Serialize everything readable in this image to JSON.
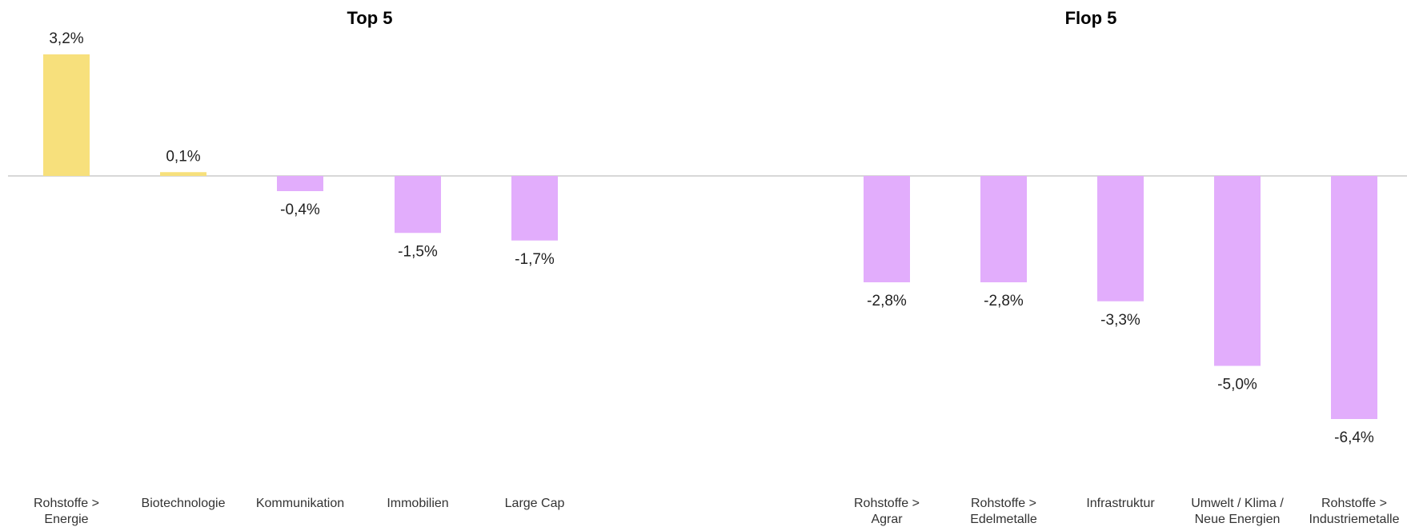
{
  "chart_data": {
    "type": "bar",
    "panels": [
      {
        "title": "Top 5",
        "categories": [
          [
            "Rohstoffe >",
            "Energie"
          ],
          [
            "Biotechnologie"
          ],
          [
            "Kommunikation"
          ],
          [
            "Immobilien"
          ],
          [
            "Large Cap"
          ]
        ],
        "values": [
          3.2,
          0.1,
          -0.4,
          -1.5,
          -1.7
        ],
        "value_labels": [
          "3,2%",
          "0,1%",
          "-0,4%",
          "-1,5%",
          "-1,7%"
        ]
      },
      {
        "title": "Flop 5",
        "categories": [
          [
            "Rohstoffe >",
            "Agrar"
          ],
          [
            "Rohstoffe >",
            "Edelmetalle"
          ],
          [
            "Infrastruktur"
          ],
          [
            "Umwelt / Klima /",
            "Neue Energien"
          ],
          [
            "Rohstoffe >",
            "Industriemetalle"
          ]
        ],
        "values": [
          -2.8,
          -2.8,
          -3.3,
          -5.0,
          -6.4
        ],
        "value_labels": [
          "-2,8%",
          "-2,8%",
          "-3,3%",
          "-5,0%",
          "-6,4%"
        ]
      }
    ],
    "colors": {
      "positive": "#f7e07c",
      "negative": "#e2adfc",
      "baseline": "#cccccc"
    },
    "grid": false,
    "legend": "none"
  }
}
